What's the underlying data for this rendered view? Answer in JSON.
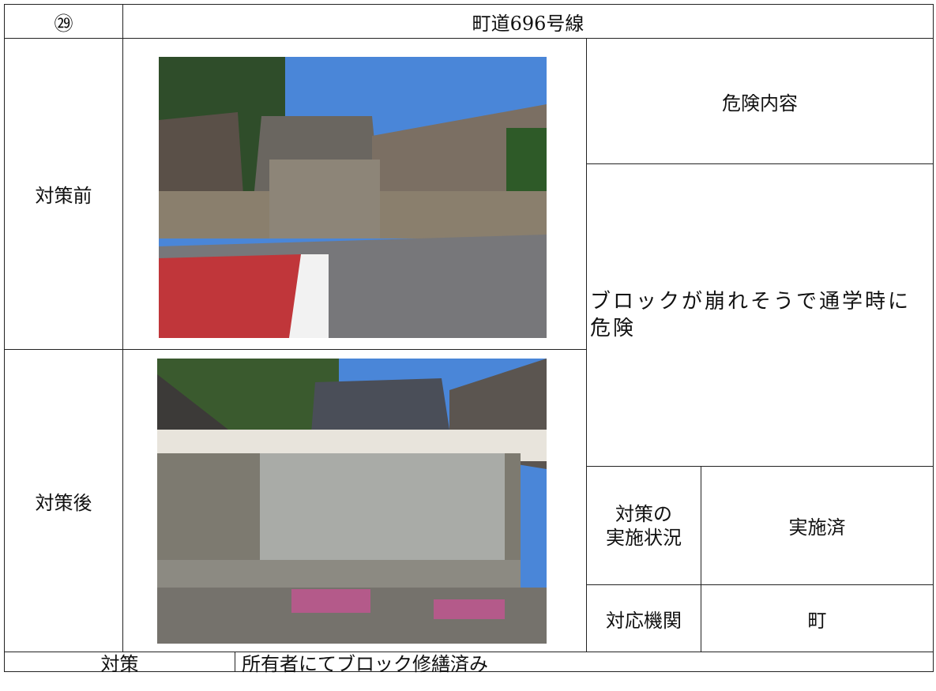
{
  "header": {
    "number": "㉙",
    "title": "町道696号線"
  },
  "before": {
    "label": "対策前"
  },
  "after": {
    "label": "対策後"
  },
  "risk": {
    "heading": "危険内容",
    "text": "ブロックが崩れそうで通学時に危険"
  },
  "status": {
    "label": [
      "対策の",
      "実施状況"
    ],
    "value": "実施済"
  },
  "agency": {
    "label": "対応機関",
    "value": "町"
  },
  "measure": {
    "label": "対策",
    "text": "所有者にてブロック修繕済み"
  }
}
